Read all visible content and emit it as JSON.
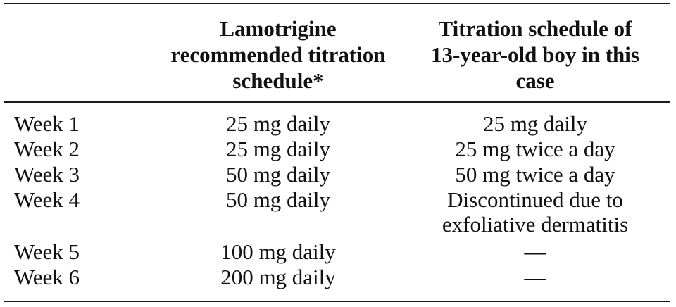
{
  "table": {
    "headers": [
      "",
      "Lamotrigine\nrecommended titration\nschedule*",
      "Titration schedule of\n13-year-old boy in this\ncase"
    ],
    "rows": [
      {
        "week": "Week 1",
        "recommended": "25 mg daily",
        "case": "25 mg daily"
      },
      {
        "week": "Week 2",
        "recommended": "25 mg daily",
        "case": "25 mg twice a day"
      },
      {
        "week": "Week 3",
        "recommended": "50 mg daily",
        "case": "50 mg twice a day"
      },
      {
        "week": "Week 4",
        "recommended": "50 mg daily",
        "case": "Discontinued due to\nexfoliative dermatitis"
      },
      {
        "week": "Week 5",
        "recommended": "100 mg daily",
        "case": "—"
      },
      {
        "week": "Week 6",
        "recommended": "200 mg daily",
        "case": "—"
      }
    ]
  }
}
